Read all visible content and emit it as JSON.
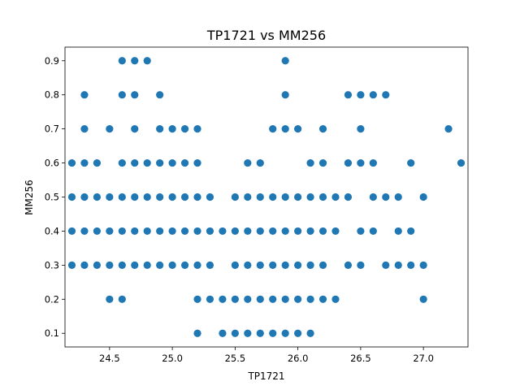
{
  "chart_data": {
    "type": "scatter",
    "title": "TP1721 vs MM256",
    "xlabel": "TP1721",
    "ylabel": "MM256",
    "xlim": [
      24.145,
      27.355
    ],
    "ylim": [
      0.06,
      0.94
    ],
    "xticks": [
      24.5,
      25.0,
      25.5,
      26.0,
      26.5,
      27.0
    ],
    "xtick_labels": [
      "24.5",
      "25.0",
      "25.5",
      "26.0",
      "26.5",
      "27.0"
    ],
    "yticks": [
      0.1,
      0.2,
      0.3,
      0.4,
      0.5,
      0.6,
      0.7,
      0.8,
      0.9
    ],
    "ytick_labels": [
      "0.1",
      "0.2",
      "0.3",
      "0.4",
      "0.5",
      "0.6",
      "0.7",
      "0.8",
      "0.9"
    ],
    "grid": false,
    "color": "#1f77b4",
    "rows": [
      {
        "y": 0.9,
        "x": [
          24.6,
          24.7,
          24.8,
          25.9
        ]
      },
      {
        "y": 0.8,
        "x": [
          24.3,
          24.6,
          24.7,
          24.9,
          25.9,
          26.4,
          26.5,
          26.6,
          26.7
        ]
      },
      {
        "y": 0.7,
        "x": [
          24.3,
          24.5,
          24.7,
          24.9,
          25.0,
          25.1,
          25.2,
          25.8,
          25.9,
          26.0,
          26.2,
          26.5,
          27.2
        ]
      },
      {
        "y": 0.6,
        "x": [
          24.2,
          24.3,
          24.4,
          24.6,
          24.7,
          24.8,
          24.9,
          25.0,
          25.1,
          25.2,
          25.6,
          25.7,
          26.1,
          26.2,
          26.4,
          26.5,
          26.6,
          26.9,
          27.3
        ]
      },
      {
        "y": 0.5,
        "x": [
          24.2,
          24.3,
          24.4,
          24.5,
          24.6,
          24.7,
          24.8,
          24.9,
          25.0,
          25.1,
          25.2,
          25.3,
          25.5,
          25.6,
          25.7,
          25.8,
          25.9,
          26.0,
          26.1,
          26.2,
          26.3,
          26.4,
          26.6,
          26.7,
          26.8,
          27.0
        ]
      },
      {
        "y": 0.4,
        "x": [
          24.2,
          24.3,
          24.4,
          24.5,
          24.6,
          24.7,
          24.8,
          24.9,
          25.0,
          25.1,
          25.2,
          25.3,
          25.4,
          25.5,
          25.6,
          25.7,
          25.8,
          25.9,
          26.0,
          26.1,
          26.2,
          26.3,
          26.5,
          26.6,
          26.8,
          26.9
        ]
      },
      {
        "y": 0.3,
        "x": [
          24.2,
          24.3,
          24.4,
          24.5,
          24.6,
          24.7,
          24.8,
          24.9,
          25.0,
          25.1,
          25.2,
          25.3,
          25.5,
          25.6,
          25.7,
          25.8,
          25.9,
          26.0,
          26.1,
          26.2,
          26.4,
          26.5,
          26.7,
          26.8,
          26.9,
          27.0
        ]
      },
      {
        "y": 0.2,
        "x": [
          24.5,
          24.6,
          25.2,
          25.3,
          25.4,
          25.5,
          25.6,
          25.7,
          25.8,
          25.9,
          26.0,
          26.1,
          26.2,
          26.3,
          27.0
        ]
      },
      {
        "y": 0.1,
        "x": [
          25.2,
          25.4,
          25.5,
          25.6,
          25.7,
          25.8,
          25.9,
          26.0,
          26.1
        ]
      }
    ]
  }
}
